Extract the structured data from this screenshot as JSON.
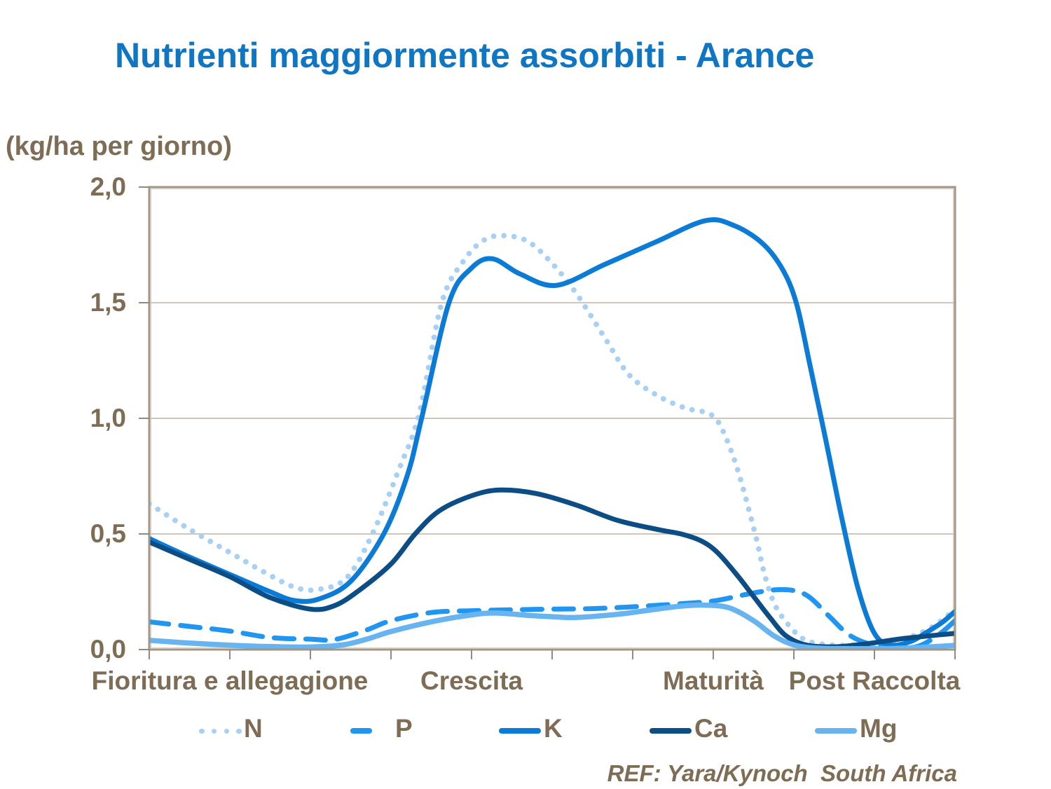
{
  "title": "Nutrienti maggiormente assorbiti - Arance",
  "reference": "REF: Yara/Kynoch  South Africa",
  "colors": {
    "title_blue": "#0E76C2",
    "text_brown": "#7E6C55",
    "plot_border": "#A39583",
    "gridline": "#CFC6B9",
    "tick": "#908A80",
    "background": "#FFFFFF"
  },
  "chart_data": {
    "type": "line",
    "title": "Nutrienti maggiormente assorbiti - Arance",
    "ylabel": "(kg/ha per giorno)",
    "xlabel": "",
    "ylim": [
      0,
      2
    ],
    "xlim": [
      0,
      10
    ],
    "grid": "horizontal",
    "legend_position": "bottom",
    "y_ticks": [
      {
        "value": 2.0,
        "label": "2,0"
      },
      {
        "value": 1.5,
        "label": "1,5"
      },
      {
        "value": 1.0,
        "label": "1,0"
      },
      {
        "value": 0.5,
        "label": "0,5"
      },
      {
        "value": 0.0,
        "label": "0,0"
      }
    ],
    "gridline_values": [
      0.5,
      1.0,
      1.5
    ],
    "x_tick_values": [
      0,
      1,
      2,
      3,
      4,
      5,
      6,
      7,
      8,
      9,
      10
    ],
    "stage_labels": [
      {
        "label": "Fioritura e allegagione",
        "x": 1
      },
      {
        "label": "Crescita",
        "x": 4
      },
      {
        "label": "Maturità",
        "x": 7
      },
      {
        "label": "Post Raccolta",
        "x": 9
      }
    ],
    "series": [
      {
        "name": "N",
        "style": "dotted",
        "color": "#A8CFF4",
        "width": 7.8,
        "points": [
          [
            0,
            0.63
          ],
          [
            0.5,
            0.52
          ],
          [
            1,
            0.42
          ],
          [
            1.4,
            0.34
          ],
          [
            1.8,
            0.27
          ],
          [
            2.1,
            0.26
          ],
          [
            2.45,
            0.31
          ],
          [
            2.77,
            0.5
          ],
          [
            3.1,
            0.78
          ],
          [
            3.35,
            1.02
          ],
          [
            3.63,
            1.5
          ],
          [
            3.9,
            1.68
          ],
          [
            4.15,
            1.77
          ],
          [
            4.4,
            1.79
          ],
          [
            4.7,
            1.765
          ],
          [
            5,
            1.67
          ],
          [
            5.3,
            1.54
          ],
          [
            5.65,
            1.35
          ],
          [
            5.95,
            1.19
          ],
          [
            6.3,
            1.1
          ],
          [
            6.65,
            1.045
          ],
          [
            6.95,
            1.02
          ],
          [
            7.1,
            0.96
          ],
          [
            7.3,
            0.78
          ],
          [
            7.52,
            0.5
          ],
          [
            7.64,
            0.32
          ],
          [
            7.77,
            0.19
          ],
          [
            7.95,
            0.1
          ],
          [
            8.15,
            0.04
          ],
          [
            8.45,
            0.02
          ],
          [
            8.8,
            0.02
          ],
          [
            9.1,
            0.03
          ],
          [
            9.4,
            0.05
          ],
          [
            9.65,
            0.085
          ],
          [
            9.85,
            0.13
          ],
          [
            10,
            0.175
          ]
        ]
      },
      {
        "name": "P",
        "style": "dashed",
        "color": "#2096F0",
        "width": 7,
        "points": [
          [
            0,
            0.12
          ],
          [
            0.5,
            0.1
          ],
          [
            1,
            0.08
          ],
          [
            1.5,
            0.052
          ],
          [
            2,
            0.045
          ],
          [
            2.3,
            0.043
          ],
          [
            2.7,
            0.085
          ],
          [
            3,
            0.125
          ],
          [
            3.5,
            0.16
          ],
          [
            4,
            0.168
          ],
          [
            4.5,
            0.172
          ],
          [
            5,
            0.175
          ],
          [
            5.5,
            0.177
          ],
          [
            6,
            0.185
          ],
          [
            6.5,
            0.196
          ],
          [
            7,
            0.21
          ],
          [
            7.4,
            0.238
          ],
          [
            7.75,
            0.258
          ],
          [
            8,
            0.255
          ],
          [
            8.2,
            0.225
          ],
          [
            8.45,
            0.14
          ],
          [
            8.7,
            0.06
          ],
          [
            9,
            0.018
          ],
          [
            9.3,
            0.008
          ],
          [
            9.55,
            0.015
          ],
          [
            9.8,
            0.065
          ],
          [
            10,
            0.125
          ]
        ]
      },
      {
        "name": "K",
        "style": "solid",
        "color": "#0C7BD6",
        "width": 7,
        "points": [
          [
            0,
            0.48
          ],
          [
            0.5,
            0.4
          ],
          [
            1,
            0.325
          ],
          [
            1.5,
            0.25
          ],
          [
            1.8,
            0.212
          ],
          [
            2.1,
            0.218
          ],
          [
            2.5,
            0.295
          ],
          [
            2.91,
            0.5
          ],
          [
            3.2,
            0.75
          ],
          [
            3.38,
            1.0
          ],
          [
            3.72,
            1.5
          ],
          [
            4,
            1.65
          ],
          [
            4.26,
            1.69
          ],
          [
            4.6,
            1.625
          ],
          [
            5.05,
            1.575
          ],
          [
            5.65,
            1.665
          ],
          [
            6.3,
            1.765
          ],
          [
            6.9,
            1.855
          ],
          [
            7.25,
            1.835
          ],
          [
            7.6,
            1.76
          ],
          [
            7.85,
            1.65
          ],
          [
            8.03,
            1.5
          ],
          [
            8.2,
            1.23
          ],
          [
            8.4,
            0.9
          ],
          [
            8.6,
            0.56
          ],
          [
            8.8,
            0.26
          ],
          [
            9,
            0.07
          ],
          [
            9.2,
            0.02
          ],
          [
            9.45,
            0.035
          ],
          [
            9.65,
            0.075
          ],
          [
            9.85,
            0.12
          ],
          [
            10,
            0.165
          ]
        ]
      },
      {
        "name": "Ca",
        "style": "solid",
        "color": "#0C4D86",
        "width": 7,
        "points": [
          [
            0,
            0.465
          ],
          [
            0.5,
            0.39
          ],
          [
            1,
            0.315
          ],
          [
            1.5,
            0.225
          ],
          [
            2,
            0.175
          ],
          [
            2.3,
            0.19
          ],
          [
            2.6,
            0.255
          ],
          [
            3,
            0.37
          ],
          [
            3.3,
            0.5
          ],
          [
            3.6,
            0.6
          ],
          [
            4,
            0.665
          ],
          [
            4.35,
            0.69
          ],
          [
            4.8,
            0.675
          ],
          [
            5.3,
            0.625
          ],
          [
            5.8,
            0.56
          ],
          [
            6.3,
            0.52
          ],
          [
            6.6,
            0.5
          ],
          [
            6.85,
            0.47
          ],
          [
            7.05,
            0.42
          ],
          [
            7.3,
            0.32
          ],
          [
            7.5,
            0.23
          ],
          [
            7.7,
            0.14
          ],
          [
            7.9,
            0.06
          ],
          [
            8.15,
            0.02
          ],
          [
            8.5,
            0.012
          ],
          [
            8.9,
            0.025
          ],
          [
            9.3,
            0.045
          ],
          [
            9.7,
            0.06
          ],
          [
            10,
            0.07
          ]
        ]
      },
      {
        "name": "Mg",
        "style": "solid",
        "color": "#68B4F0",
        "width": 7.5,
        "points": [
          [
            0,
            0.04
          ],
          [
            0.5,
            0.028
          ],
          [
            1,
            0.019
          ],
          [
            1.5,
            0.013
          ],
          [
            2,
            0.011
          ],
          [
            2.4,
            0.02
          ],
          [
            2.7,
            0.045
          ],
          [
            3,
            0.078
          ],
          [
            3.5,
            0.12
          ],
          [
            4,
            0.15
          ],
          [
            4.3,
            0.158
          ],
          [
            4.7,
            0.148
          ],
          [
            5,
            0.142
          ],
          [
            5.3,
            0.139
          ],
          [
            5.8,
            0.152
          ],
          [
            6.2,
            0.17
          ],
          [
            6.6,
            0.188
          ],
          [
            6.9,
            0.192
          ],
          [
            7.2,
            0.18
          ],
          [
            7.5,
            0.125
          ],
          [
            7.75,
            0.06
          ],
          [
            8,
            0.02
          ],
          [
            8.3,
            0.006
          ],
          [
            8.7,
            0.004
          ],
          [
            9.1,
            0.004
          ],
          [
            9.5,
            0.008
          ],
          [
            10,
            0.018
          ]
        ]
      }
    ]
  }
}
